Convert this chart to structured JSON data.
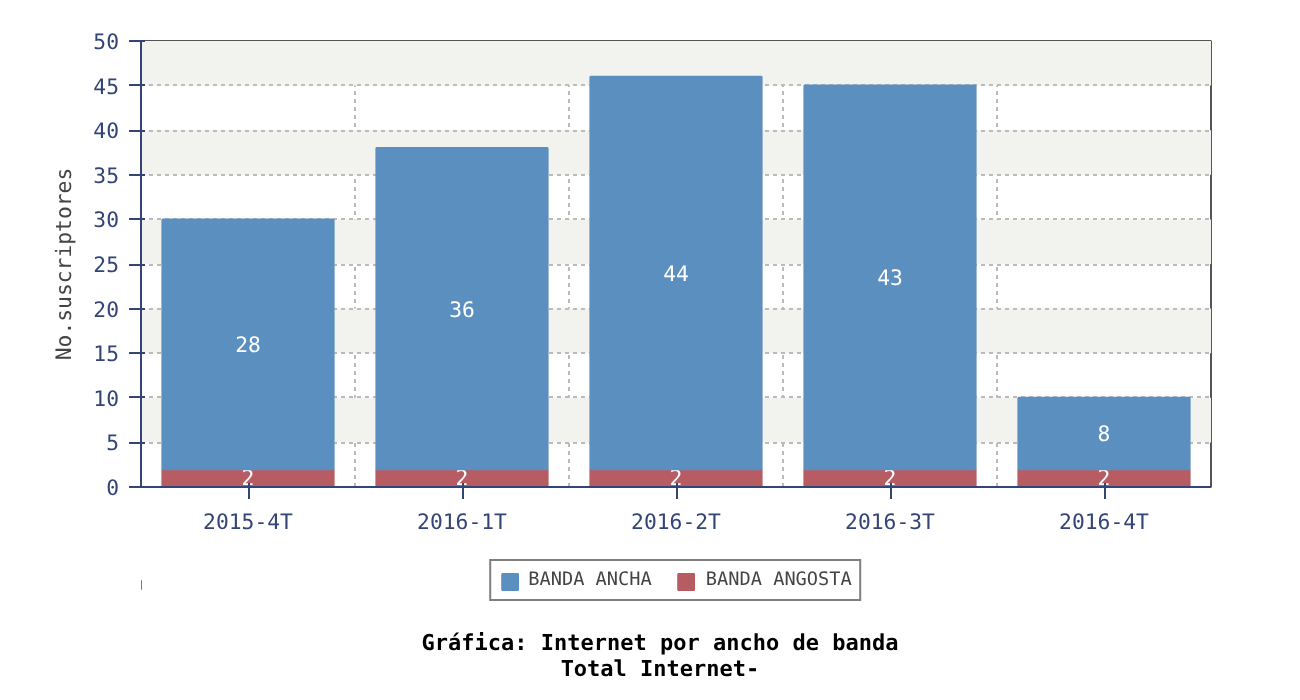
{
  "chart_data": {
    "type": "bar",
    "stacked": true,
    "title": "Gráfica: Internet por ancho de banda",
    "subtitle": "Total Internet-",
    "ylabel": "No.suscriptores",
    "categories": [
      "2015-4T",
      "2016-1T",
      "2016-2T",
      "2016-3T",
      "2016-4T"
    ],
    "series": [
      {
        "name": "BANDA ANGOSTA",
        "color": "#b85c63",
        "values": [
          2,
          2,
          2,
          2,
          2
        ]
      },
      {
        "name": "BANDA ANCHA",
        "color": "#5b8fbf",
        "values": [
          28,
          36,
          44,
          43,
          8
        ]
      }
    ],
    "ylim": [
      0,
      50
    ],
    "yticks": [
      0,
      5,
      10,
      15,
      20,
      25,
      30,
      35,
      40,
      45,
      50
    ],
    "grid": true,
    "legend": "bottom",
    "data_labels": true
  }
}
